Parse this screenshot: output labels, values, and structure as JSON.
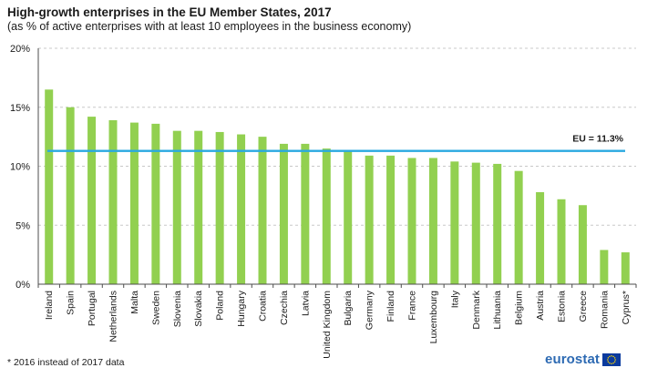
{
  "chart_data": {
    "type": "bar",
    "title": "High-growth enterprises in the EU Member States, 2017",
    "subtitle": "(as % of active enterprises with at least 10 employees in the business economy)",
    "categories": [
      "Ireland",
      "Spain",
      "Portugal",
      "Netherlands",
      "Malta",
      "Sweden",
      "Slovenia",
      "Slovakia",
      "Poland",
      "Hungary",
      "Croatia",
      "Czechia",
      "Latvia",
      "United Kingdom",
      "Bulgaria",
      "Germany",
      "Finland",
      "France",
      "Luxembourg",
      "Italy",
      "Denmark",
      "Lithuania",
      "Belgium",
      "Austria",
      "Estonia",
      "Greece",
      "Romania",
      "Cyprus*"
    ],
    "values": [
      16.5,
      15.0,
      14.2,
      13.9,
      13.7,
      13.6,
      13.0,
      13.0,
      12.9,
      12.7,
      12.5,
      11.9,
      11.9,
      11.5,
      11.3,
      10.9,
      10.9,
      10.7,
      10.7,
      10.4,
      10.3,
      10.2,
      9.6,
      7.8,
      7.2,
      6.7,
      2.9,
      2.7
    ],
    "ylim": [
      0,
      20
    ],
    "yticks": [
      0,
      5,
      10,
      15,
      20
    ],
    "ytick_labels": [
      "0%",
      "5%",
      "10%",
      "15%",
      "20%"
    ],
    "reference_line": {
      "value": 11.3,
      "label": "EU = 11.3%"
    },
    "grid": true,
    "xlabel": "",
    "ylabel": "",
    "colors": {
      "bar": "#92d050",
      "reference_line": "#29a8e0",
      "grid": "#c8c8c8",
      "axis": "#4d4d4d"
    }
  },
  "footnote": "* 2016 instead of 2017 data",
  "brand": {
    "name": "eurostat",
    "color": "#2d6ab3",
    "flag_color": "#0a3a9e",
    "star_color": "#ffd700"
  }
}
